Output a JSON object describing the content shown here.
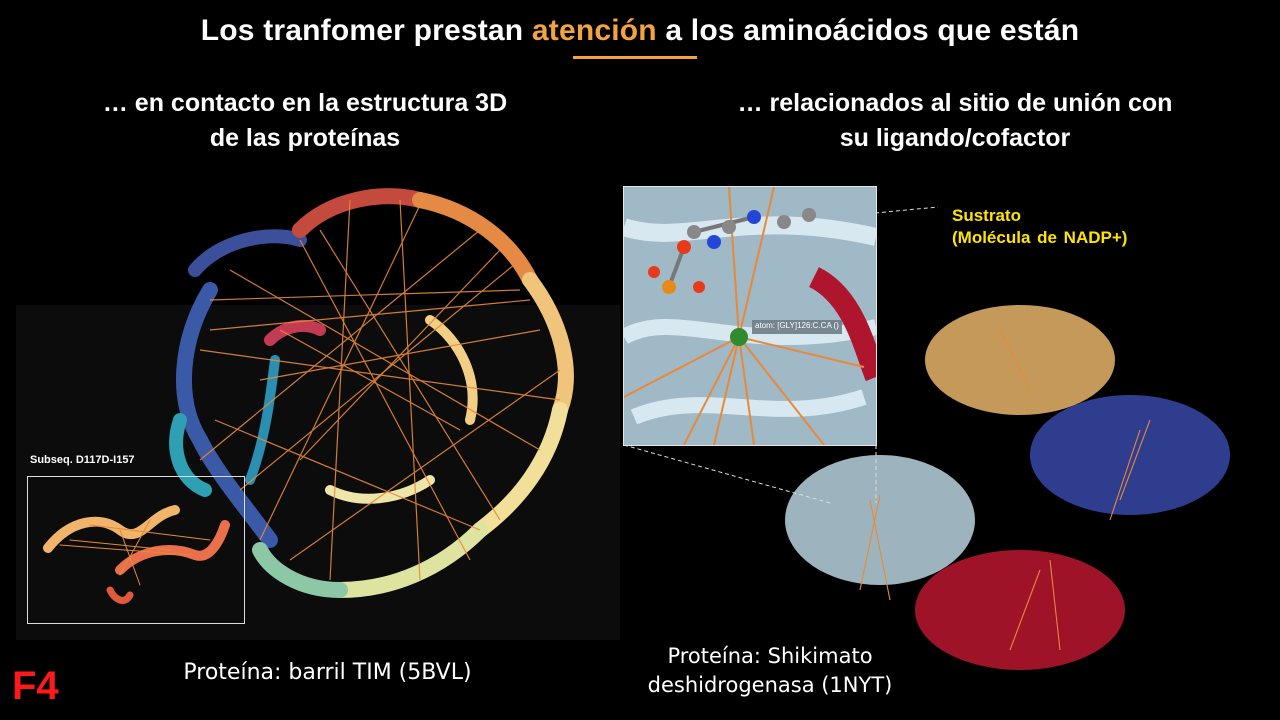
{
  "title": {
    "before": "Los tranfomer prestan ",
    "highlight": "atención",
    "after": " a los aminoácidos que están"
  },
  "left": {
    "subtitle_line1": "… en contacto en la estructura 3D",
    "subtitle_line2": "de las proteínas",
    "inset_label": "Subseq. D117D-I157",
    "caption": "Proteína: barril TIM (5BVL)"
  },
  "right": {
    "subtitle_line1": "… relacionados al sitio de unión con",
    "subtitle_line2": "su ligando/cofactor",
    "substrate_line1": "Sustrato",
    "substrate_line2": "(Molécula de NADP+)",
    "atom_label": "atom: [GLY]126:C.CA ()",
    "caption_line1": "Proteína: Shikimato",
    "caption_line2": "deshidrogenasa (1NYT)"
  },
  "slide_tag": "F4",
  "colors": {
    "accent": "#f4a340",
    "substrate": "#ffe400",
    "tag": "#ff1a1a",
    "attention_lines": "#e8893a"
  }
}
